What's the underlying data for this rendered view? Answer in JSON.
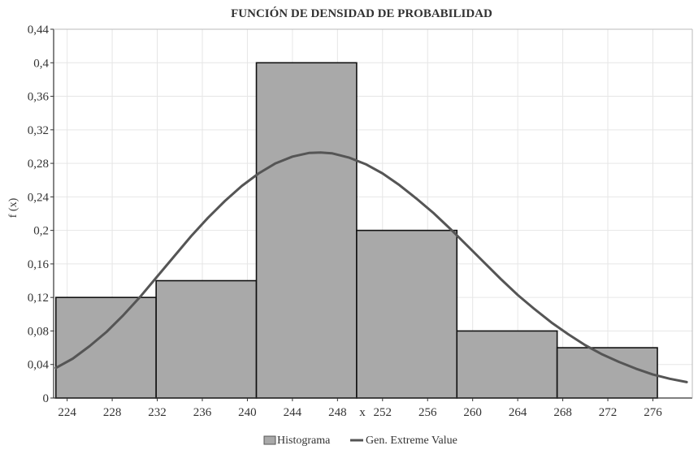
{
  "chart_data": {
    "type": "bar",
    "title": "FUNCIÓN DE DENSIDAD DE PROBABILIDAD",
    "xlabel": "x",
    "ylabel": "f (x)",
    "xlim": [
      222.8,
      279.5
    ],
    "ylim": [
      0,
      0.44
    ],
    "x_ticks": [
      "224",
      "228",
      "232",
      "236",
      "240",
      "244",
      "248",
      "252",
      "256",
      "260",
      "264",
      "268",
      "272",
      "276"
    ],
    "x_tick_values": [
      224,
      228,
      232,
      236,
      240,
      244,
      248,
      252,
      256,
      260,
      264,
      268,
      272,
      276
    ],
    "y_ticks": [
      "0",
      "0,04",
      "0,08",
      "0,12",
      "0,16",
      "0,2",
      "0,24",
      "0,28",
      "0,32",
      "0,36",
      "0,4",
      "0,44"
    ],
    "y_tick_values": [
      0,
      0.04,
      0.08,
      0.12,
      0.16,
      0.2,
      0.24,
      0.28,
      0.32,
      0.36,
      0.4,
      0.44
    ],
    "grid": true,
    "legend_position": "bottom-center",
    "series": [
      {
        "name": "Histograma",
        "kind": "histogram",
        "color": "#a9a9a9",
        "bins": [
          {
            "start": 223.0,
            "end": 231.9,
            "value": 0.12
          },
          {
            "start": 231.9,
            "end": 240.8,
            "value": 0.14
          },
          {
            "start": 240.8,
            "end": 249.7,
            "value": 0.4
          },
          {
            "start": 249.7,
            "end": 258.6,
            "value": 0.2
          },
          {
            "start": 258.6,
            "end": 267.5,
            "value": 0.08
          },
          {
            "start": 267.5,
            "end": 276.4,
            "value": 0.06
          }
        ]
      },
      {
        "name": "Gen. Extreme Value",
        "kind": "line",
        "color": "#555555",
        "x": [
          223.0,
          224.5,
          226.0,
          227.5,
          229.0,
          230.5,
          232.0,
          233.5,
          235.0,
          236.5,
          238.0,
          239.5,
          241.0,
          242.5,
          244.0,
          245.5,
          246.5,
          247.5,
          249.0,
          250.5,
          252.0,
          253.5,
          255.0,
          256.5,
          258.0,
          259.5,
          261.0,
          262.5,
          264.0,
          265.5,
          267.0,
          268.5,
          270.0,
          271.5,
          273.0,
          274.5,
          276.0,
          277.5,
          279.0
        ],
        "y": [
          0.036,
          0.047,
          0.062,
          0.079,
          0.099,
          0.121,
          0.145,
          0.169,
          0.193,
          0.215,
          0.235,
          0.253,
          0.268,
          0.28,
          0.288,
          0.2925,
          0.293,
          0.292,
          0.287,
          0.279,
          0.268,
          0.254,
          0.238,
          0.221,
          0.202,
          0.182,
          0.162,
          0.142,
          0.123,
          0.106,
          0.09,
          0.076,
          0.063,
          0.052,
          0.043,
          0.035,
          0.028,
          0.023,
          0.019
        ]
      }
    ]
  }
}
